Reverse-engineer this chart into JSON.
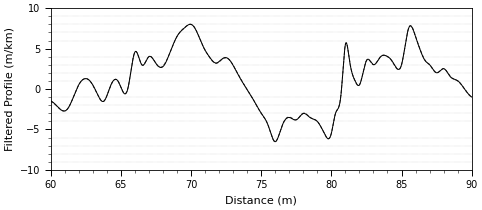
{
  "title": "",
  "xlabel": "Distance (m)",
  "ylabel": "Filtered Profile (m/km)",
  "xlim": [
    60,
    90
  ],
  "ylim": [
    -10,
    10
  ],
  "xticks": [
    60,
    65,
    70,
    75,
    80,
    85,
    90
  ],
  "yticks": [
    -10,
    -5,
    0,
    5,
    10
  ],
  "line_color_1": "#000000",
  "line_color_2": "#444444",
  "line_color_3": "#888888",
  "line_width": 0.7,
  "figsize": [
    4.82,
    2.1
  ],
  "dpi": 100,
  "background": "#ffffff",
  "tick_label_fontsize": 7,
  "axis_label_fontsize": 8,
  "waypoints_x": [
    60.0,
    60.5,
    61.2,
    62.0,
    62.8,
    63.3,
    63.8,
    64.3,
    64.8,
    65.5,
    66.0,
    66.5,
    67.0,
    67.5,
    68.0,
    68.5,
    69.0,
    69.5,
    70.0,
    70.3,
    70.8,
    71.3,
    71.8,
    72.3,
    72.8,
    73.3,
    73.8,
    74.5,
    75.0,
    75.5,
    76.0,
    76.5,
    77.0,
    77.5,
    78.0,
    78.5,
    79.0,
    79.5,
    80.0,
    80.3,
    80.7,
    81.0,
    81.3,
    81.7,
    82.0,
    82.5,
    83.0,
    83.5,
    84.0,
    84.3,
    84.7,
    85.0,
    85.5,
    86.0,
    86.3,
    86.7,
    87.0,
    87.5,
    88.0,
    88.5,
    89.0,
    89.5,
    90.0
  ],
  "waypoints_y": [
    -1.5,
    -2.2,
    -2.5,
    0.5,
    1.0,
    -0.5,
    -1.5,
    0.5,
    1.0,
    0.0,
    4.5,
    3.0,
    4.0,
    3.2,
    2.8,
    4.5,
    6.5,
    7.5,
    8.0,
    7.5,
    5.5,
    4.0,
    3.2,
    3.8,
    3.5,
    2.0,
    0.5,
    -1.5,
    -3.0,
    -4.5,
    -6.5,
    -4.5,
    -3.5,
    -3.8,
    -3.0,
    -3.5,
    -4.0,
    -5.5,
    -5.5,
    -3.0,
    -0.5,
    5.5,
    3.5,
    1.0,
    0.5,
    3.5,
    3.0,
    4.0,
    4.0,
    3.5,
    2.5,
    3.0,
    7.5,
    6.5,
    5.0,
    3.5,
    3.0,
    2.0,
    2.5,
    1.5,
    1.0,
    0.0,
    -1.0
  ],
  "noise_scale": 0.18,
  "noise_smooth_sigma": 20
}
